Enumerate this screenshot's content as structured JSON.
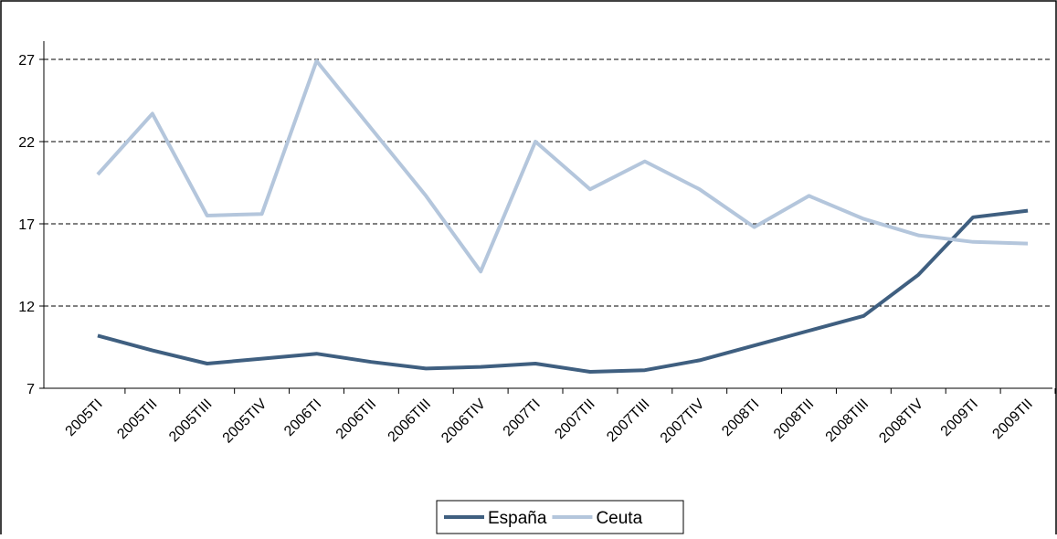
{
  "chart_data": {
    "type": "line",
    "categories": [
      "2005TI",
      "2005TII",
      "2005TIII",
      "2005TIV",
      "2006TI",
      "2006TII",
      "2006TIII",
      "2006TIV",
      "2007TI",
      "2007TII",
      "2007TIII",
      "2007TIV",
      "2008TI",
      "2008TII",
      "2008TIII",
      "2008TIV",
      "2009TI",
      "2009TII"
    ],
    "series": [
      {
        "name": "España",
        "color": "#3f5f80",
        "values": [
          10.2,
          9.3,
          8.5,
          8.8,
          9.1,
          8.6,
          8.2,
          8.3,
          8.5,
          8.0,
          8.1,
          8.7,
          9.6,
          10.5,
          11.4,
          13.9,
          17.4,
          17.8
        ]
      },
      {
        "name": "Ceuta",
        "color": "#b4c6dc",
        "values": [
          20.0,
          23.7,
          17.5,
          17.6,
          26.9,
          22.8,
          18.7,
          14.1,
          22.0,
          19.1,
          20.8,
          19.1,
          16.8,
          18.7,
          17.3,
          16.3,
          15.9,
          15.8
        ]
      }
    ],
    "ylim": [
      7,
      27
    ],
    "yticks": [
      7,
      12,
      17,
      22,
      27
    ],
    "grid": true,
    "legend": "bottom"
  }
}
